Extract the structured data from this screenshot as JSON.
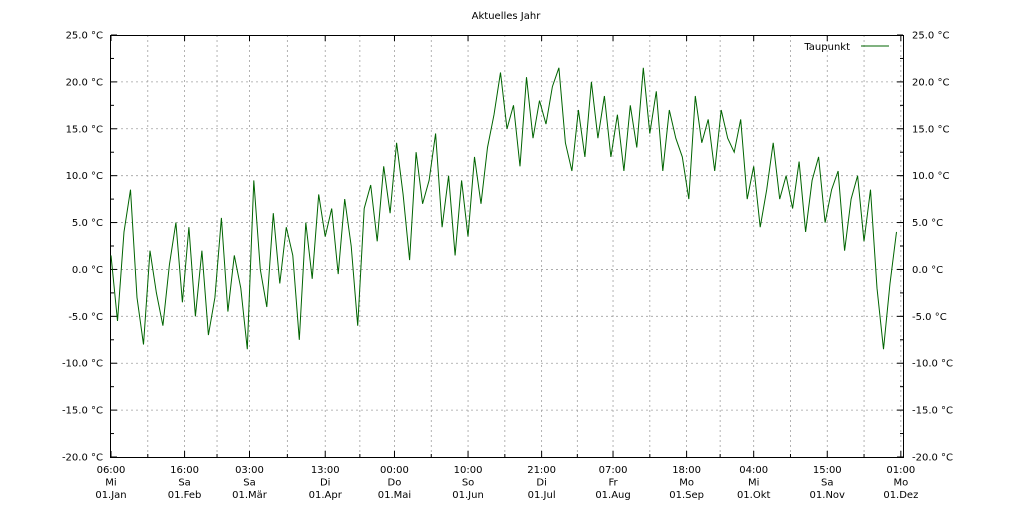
{
  "chart_data": {
    "type": "line",
    "title": "Aktuelles Jahr",
    "xlabel": "",
    "ylabel": "",
    "ylim": [
      -20,
      25
    ],
    "y_ticks": [
      -20,
      -15,
      -10,
      -5,
      0,
      5,
      10,
      15,
      20,
      25
    ],
    "y_tick_labels": [
      "-20.0 °C",
      "-15.0 °C",
      "-10.0 °C",
      "-5.0 °C",
      "0.0 °C",
      "5.0 °C",
      "10.0 °C",
      "15.0 °C",
      "20.0 °C",
      "25.0 °C"
    ],
    "xlim": [
      0,
      366
    ],
    "x_ticks": [
      {
        "day": 0,
        "lines": [
          "06:00",
          "Mi",
          "01.Jan"
        ]
      },
      {
        "day": 34,
        "lines": [
          "16:00",
          "Sa",
          "01.Feb"
        ]
      },
      {
        "day": 64,
        "lines": [
          "03:00",
          "Sa",
          "01.Mär"
        ]
      },
      {
        "day": 99,
        "lines": [
          "13:00",
          "Di",
          "01.Apr"
        ]
      },
      {
        "day": 131,
        "lines": [
          "00:00",
          "Do",
          "01.Mai"
        ]
      },
      {
        "day": 165,
        "lines": [
          "10:00",
          "So",
          "01.Jun"
        ]
      },
      {
        "day": 199,
        "lines": [
          "21:00",
          "Di",
          "01.Jul"
        ]
      },
      {
        "day": 232,
        "lines": [
          "07:00",
          "Fr",
          "01.Aug"
        ]
      },
      {
        "day": 266,
        "lines": [
          "18:00",
          "Mo",
          "01.Sep"
        ]
      },
      {
        "day": 297,
        "lines": [
          "04:00",
          "Mi",
          "01.Okt"
        ]
      },
      {
        "day": 331,
        "lines": [
          "15:00",
          "Sa",
          "01.Nov"
        ]
      },
      {
        "day": 365,
        "lines": [
          "01:00",
          "Mo",
          "01.Dez"
        ]
      }
    ],
    "grid": true,
    "legend_position": "top-right",
    "series": [
      {
        "name": "Taupunkt",
        "color": "#006400",
        "x": [
          0,
          3,
          6,
          9,
          12,
          15,
          18,
          21,
          24,
          27,
          30,
          33,
          36,
          39,
          42,
          45,
          48,
          51,
          54,
          57,
          60,
          63,
          66,
          69,
          72,
          75,
          78,
          81,
          84,
          87,
          90,
          93,
          96,
          99,
          102,
          105,
          108,
          111,
          114,
          117,
          120,
          123,
          126,
          129,
          132,
          135,
          138,
          141,
          144,
          147,
          150,
          153,
          156,
          159,
          162,
          165,
          168,
          171,
          174,
          177,
          180,
          183,
          186,
          189,
          192,
          195,
          198,
          201,
          204,
          207,
          210,
          213,
          216,
          219,
          222,
          225,
          228,
          231,
          234,
          237,
          240,
          243,
          246,
          249,
          252,
          255,
          258,
          261,
          264,
          267,
          270,
          273,
          276,
          279,
          282,
          285,
          288,
          291,
          294,
          297,
          300,
          303,
          306,
          309,
          312,
          315,
          318,
          321,
          324,
          327,
          330,
          333,
          336,
          339,
          342,
          345,
          348,
          351,
          354,
          357,
          360,
          363
        ],
        "y": [
          1.5,
          -5.5,
          4.0,
          8.5,
          -3.0,
          -8.0,
          2.0,
          -2.5,
          -6.0,
          0.5,
          5.0,
          -3.5,
          4.5,
          -5.0,
          2.0,
          -7.0,
          -3.0,
          5.5,
          -4.5,
          1.5,
          -2.0,
          -8.5,
          9.5,
          0.0,
          -4.0,
          6.0,
          -1.5,
          4.5,
          1.5,
          -7.5,
          5.0,
          -1.0,
          8.0,
          3.5,
          6.5,
          -0.5,
          7.5,
          2.5,
          -6.0,
          6.5,
          9.0,
          3.0,
          11.0,
          6.0,
          13.5,
          8.0,
          1.0,
          12.5,
          7.0,
          9.5,
          14.5,
          4.5,
          10.0,
          1.5,
          9.5,
          3.5,
          12.0,
          7.0,
          13.0,
          16.5,
          21.0,
          15.0,
          17.5,
          11.0,
          20.5,
          14.0,
          18.0,
          15.5,
          19.5,
          21.5,
          13.5,
          10.5,
          17.0,
          12.0,
          20.0,
          14.0,
          18.5,
          12.0,
          16.5,
          10.5,
          17.5,
          13.0,
          21.5,
          14.5,
          19.0,
          10.5,
          17.0,
          14.0,
          12.0,
          7.5,
          18.5,
          13.5,
          16.0,
          10.5,
          17.0,
          14.0,
          12.5,
          16.0,
          7.5,
          11.0,
          4.5,
          8.5,
          13.5,
          7.5,
          10.0,
          6.5,
          11.5,
          4.0,
          9.5,
          12.0,
          5.0,
          8.5,
          10.5,
          2.0,
          7.5,
          10.0,
          3.0,
          8.5,
          -2.0,
          -8.5,
          -1.5,
          4.0
        ]
      }
    ]
  }
}
